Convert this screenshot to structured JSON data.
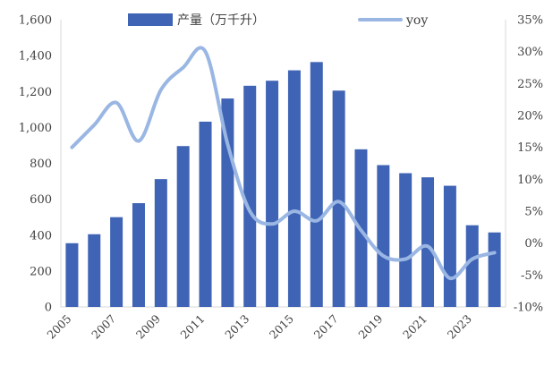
{
  "chart_data": {
    "type": "bar",
    "categories": [
      "2005",
      "2006",
      "2007",
      "2008",
      "2009",
      "2010",
      "2011",
      "2012",
      "2013",
      "2014",
      "2015",
      "2016",
      "2017",
      "2018",
      "2019",
      "2020",
      "2021",
      "2022",
      "2023",
      "2024"
    ],
    "x_tick_labels": [
      "2005",
      "2007",
      "2009",
      "2011",
      "2013",
      "2015",
      "2017",
      "2019",
      "2021",
      "2023"
    ],
    "series": [
      {
        "name": "产量（万千升）",
        "type": "bar",
        "axis": "left",
        "color": "#3f63b5",
        "values": [
          355,
          405,
          500,
          578,
          712,
          896,
          1032,
          1161,
          1232,
          1260,
          1318,
          1364,
          1205,
          878,
          790,
          745,
          722,
          675,
          455,
          415
        ]
      },
      {
        "name": "yoy",
        "type": "line",
        "axis": "right",
        "color": "#9ab6e3",
        "values": [
          15,
          18.5,
          22,
          16,
          24,
          27.5,
          30,
          15.5,
          5,
          3,
          5,
          3.5,
          6.5,
          2,
          -2,
          -2.5,
          -0.5,
          -5.5,
          -2.5,
          -1.5
        ]
      }
    ],
    "y_left": {
      "min": 0,
      "max": 1600,
      "ticks": [
        "0",
        "200",
        "400",
        "600",
        "800",
        "1,000",
        "1,200",
        "1,400",
        "1,600"
      ]
    },
    "y_right": {
      "min": -10,
      "max": 35,
      "ticks": [
        "-10%",
        "-5%",
        "0%",
        "5%",
        "10%",
        "15%",
        "20%",
        "25%",
        "30%",
        "35%"
      ]
    },
    "legend_position": "top",
    "grid": false
  }
}
